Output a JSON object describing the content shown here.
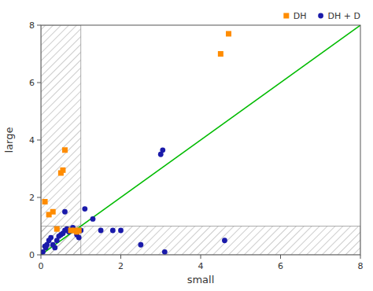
{
  "chart_data": {
    "type": "scatter",
    "xlabel": "small",
    "ylabel": "large",
    "xlim": [
      0,
      8
    ],
    "ylim": [
      0,
      8
    ],
    "xticks": [
      0,
      2,
      4,
      6,
      8
    ],
    "yticks": [
      0,
      2,
      4,
      6,
      8
    ],
    "grid": false,
    "legend": "upper right",
    "regions": [
      {
        "x": 0,
        "y": 0,
        "width": 1,
        "height": 8
      },
      {
        "x": 0,
        "y": 0,
        "width": 8,
        "height": 1
      }
    ],
    "reference_line": {
      "color": "#00BB00",
      "x": [
        0,
        8
      ],
      "values": [
        0,
        8
      ]
    },
    "series": [
      {
        "name": "DH",
        "color": "#FF8C00",
        "marker": "square",
        "x": [
          0.1,
          0.2,
          0.3,
          0.4,
          0.5,
          0.55,
          0.6,
          0.75,
          0.85,
          0.9,
          0.95,
          4.5,
          4.7
        ],
        "values": [
          1.85,
          1.4,
          1.5,
          0.9,
          2.85,
          2.95,
          3.65,
          0.85,
          0.85,
          0.8,
          0.85,
          7.0,
          7.7
        ]
      },
      {
        "name": "DH + D",
        "color": "#1a1aaa",
        "marker": "circle",
        "x": [
          0.05,
          0.1,
          0.12,
          0.15,
          0.2,
          0.25,
          0.3,
          0.35,
          0.4,
          0.45,
          0.5,
          0.55,
          0.6,
          0.65,
          0.7,
          0.75,
          0.8,
          0.85,
          0.9,
          0.95,
          1.0,
          1.1,
          1.3,
          1.5,
          1.8,
          2.0,
          2.5,
          3.0,
          3.05,
          3.1,
          4.6,
          0.6
        ],
        "values": [
          0.1,
          0.3,
          0.25,
          0.35,
          0.5,
          0.6,
          0.35,
          0.25,
          0.5,
          0.65,
          0.7,
          0.75,
          0.85,
          0.9,
          0.8,
          0.85,
          0.95,
          0.85,
          0.7,
          0.6,
          0.85,
          1.6,
          1.25,
          0.85,
          0.85,
          0.85,
          0.35,
          3.5,
          3.65,
          0.1,
          0.5,
          1.5
        ]
      }
    ]
  }
}
